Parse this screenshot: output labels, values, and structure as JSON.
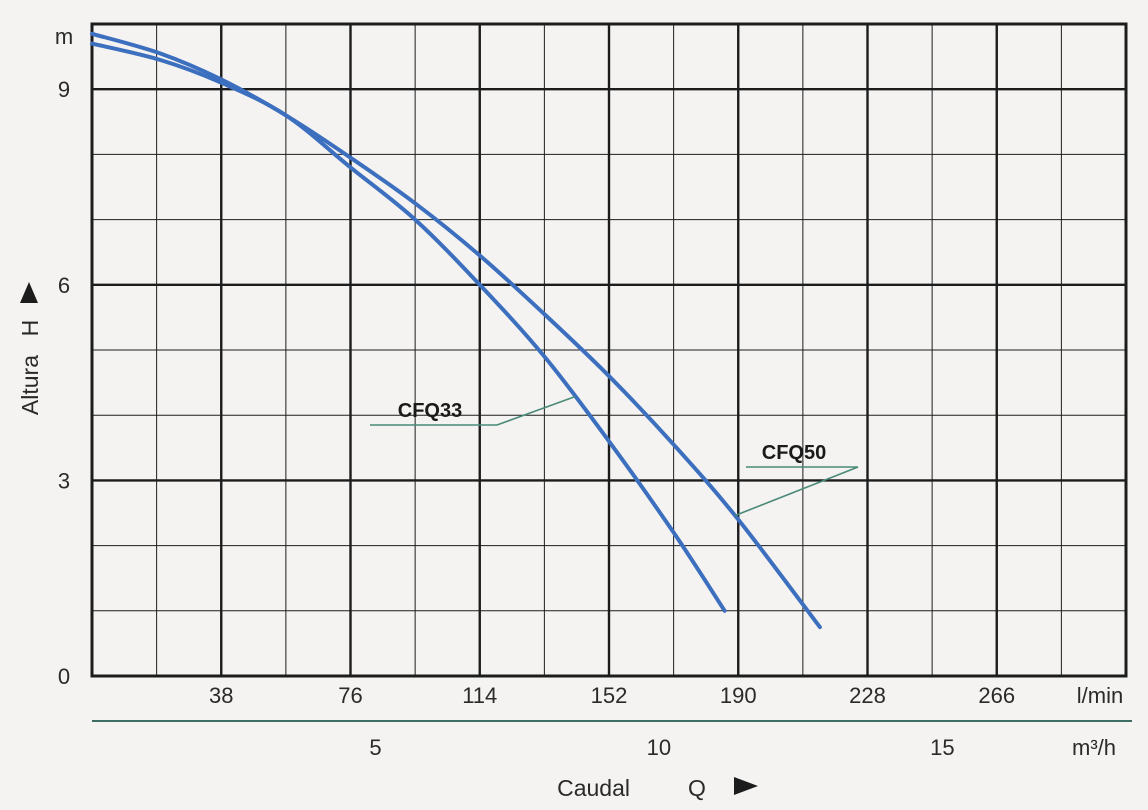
{
  "chart_data": {
    "type": "line",
    "xlabel": "Caudal",
    "xlabel_symbol": "Q",
    "ylabel": "Altura",
    "ylabel_symbol": "H",
    "y_unit": "m",
    "x_unit_primary": "l/min",
    "x_unit_secondary": "m³/h",
    "xlim": [
      0,
      304
    ],
    "ylim": [
      0,
      10
    ],
    "y_ticks": [
      "0",
      "3",
      "6",
      "9"
    ],
    "x_ticks_primary": [
      "38",
      "76",
      "114",
      "152",
      "190",
      "228",
      "266"
    ],
    "x_ticks_secondary": [
      "5",
      "10",
      "15"
    ],
    "grid": true,
    "colors": {
      "series": "#3d6fbf",
      "grid": "#1c1c1c",
      "leader": "#4a8a78"
    },
    "series": [
      {
        "name": "CFQ33",
        "x": [
          0,
          20,
          38,
          57,
          76,
          95,
          114,
          133,
          152,
          171,
          186
        ],
        "y": [
          9.7,
          9.45,
          9.1,
          8.6,
          7.8,
          7.0,
          6.0,
          4.9,
          3.6,
          2.2,
          1.0
        ]
      },
      {
        "name": "CFQ50",
        "x": [
          0,
          20,
          38,
          57,
          76,
          95,
          114,
          133,
          152,
          171,
          190,
          214
        ],
        "y": [
          9.85,
          9.55,
          9.15,
          8.6,
          7.95,
          7.25,
          6.45,
          5.55,
          4.6,
          3.55,
          2.4,
          0.75
        ]
      }
    ]
  }
}
